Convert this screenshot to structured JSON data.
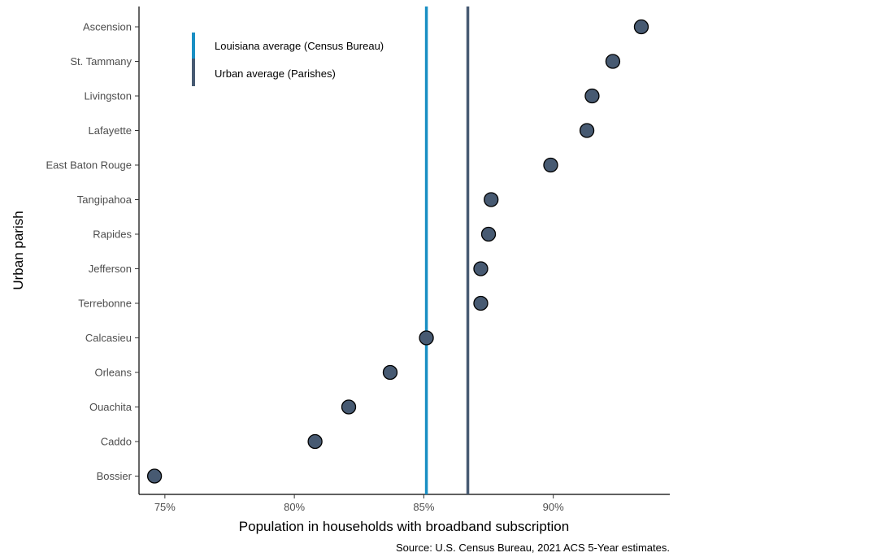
{
  "chart_data": {
    "type": "scatter",
    "xlabel": "Population in households with broadband subscription",
    "ylabel": "Urban parish",
    "caption": "Source: U.S. Census Bureau, 2021 ACS 5-Year estimates.",
    "xlim": [
      74,
      94.5
    ],
    "x_ticks": [
      75,
      80,
      85,
      90
    ],
    "x_tick_labels": [
      "75%",
      "80%",
      "85%",
      "90%"
    ],
    "grid": false,
    "categories": [
      "Ascension",
      "St. Tammany",
      "Livingston",
      "Lafayette",
      "East Baton Rouge",
      "Tangipahoa",
      "Rapides",
      "Jefferson",
      "Terrebonne",
      "Calcasieu",
      "Orleans",
      "Ouachita",
      "Caddo",
      "Bossier"
    ],
    "values": [
      93.4,
      92.3,
      91.5,
      91.3,
      89.9,
      87.6,
      87.5,
      87.2,
      87.2,
      85.1,
      83.7,
      82.1,
      80.8,
      74.6
    ],
    "point_color": "#475a72",
    "reference_lines": [
      {
        "name": "Louisiana average (Census Bureau)",
        "value": 85.1,
        "color": "#1a8fc4"
      },
      {
        "name": "Urban average (Parishes)",
        "value": 86.7,
        "color": "#475a72"
      }
    ],
    "legend_position": "top-left"
  }
}
